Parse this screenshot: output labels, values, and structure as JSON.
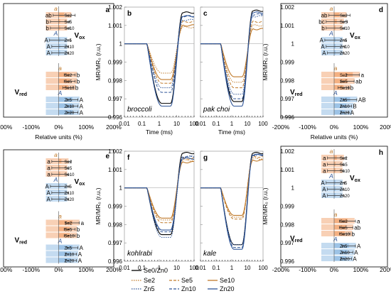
{
  "chart_data": [
    {
      "panel": "a",
      "type": "bar",
      "orientation": "horizontal",
      "blocks": [
        {
          "title": "V",
          "title_sub": "ox",
          "groups": [
            {
              "letter": "a",
              "letter_color": "#c07a2a",
              "rows": [
                {
                  "label": "Se2",
                  "value": 20,
                  "err": 40,
                  "sig": "ab"
                },
                {
                  "label": "Se5",
                  "value": 5,
                  "err": 35,
                  "sig": "b"
                },
                {
                  "label": "Se10",
                  "value": 5,
                  "err": 35,
                  "sig": "b"
                }
              ]
            },
            {
              "letter": "A",
              "letter_color": "#2f5597",
              "rows": [
                {
                  "label": "Zn5",
                  "value": 5,
                  "err": 38,
                  "sig": "A"
                },
                {
                  "label": "Zn10",
                  "value": 5,
                  "err": 30,
                  "sig": "A"
                },
                {
                  "label": "Zn20",
                  "value": 5,
                  "err": 30,
                  "sig": "A"
                }
              ]
            }
          ]
        },
        {
          "title": "V",
          "title_sub": "red",
          "groups": [
            {
              "letter": "a",
              "letter_color": "#c07a2a",
              "rows": [
                {
                  "label": "Se2",
                  "value": 40,
                  "err": 20,
                  "sig": "b"
                },
                {
                  "label": "Se5",
                  "value": 40,
                  "err": 20,
                  "sig": "b"
                },
                {
                  "label": "Se10",
                  "value": 35,
                  "err": 20,
                  "sig": "b"
                }
              ]
            },
            {
              "letter": "A",
              "letter_color": "#2f5597",
              "rows": [
                {
                  "label": "Zn5",
                  "value": 50,
                  "err": 20,
                  "sig": "A"
                },
                {
                  "label": "Zn10",
                  "value": 50,
                  "err": 20,
                  "sig": "A"
                },
                {
                  "label": "Zn20",
                  "value": 50,
                  "err": 20,
                  "sig": "A"
                }
              ]
            }
          ]
        }
      ],
      "xticks": [
        "-200%",
        "-100%",
        "0%",
        "100%",
        "200%"
      ],
      "xlim": [
        -200,
        200
      ],
      "xlabel": "Relative units (%)"
    },
    {
      "panel": "b",
      "type": "line",
      "plant": "broccoli",
      "x_log": true,
      "xlim": [
        0.01,
        100
      ],
      "ylim": [
        0.996,
        1.002
      ],
      "xticks": [
        "0.01",
        "0.1",
        "1",
        "10",
        "100"
      ],
      "yticks": [
        "0.996",
        "0.997",
        "0.998",
        "0.999",
        "1",
        "1.001",
        "1.002"
      ],
      "xlabel": "Time (ms)",
      "ylabel": "MR/MR₀ (r.u.)",
      "series": [
        {
          "name": "Se0/Zn0",
          "min": 0.99675,
          "end": 1.0017
        },
        {
          "name": "Se2",
          "min": 0.9984,
          "end": 1.0009
        },
        {
          "name": "Se5",
          "min": 0.99785,
          "end": 1.0012
        },
        {
          "name": "Se10",
          "min": 0.99805,
          "end": 1.001
        },
        {
          "name": "Zn5",
          "min": 0.9976,
          "end": 1.0013
        },
        {
          "name": "Zn10",
          "min": 0.99735,
          "end": 1.0015
        },
        {
          "name": "Zn20",
          "min": 0.9966,
          "end": 1.0015
        }
      ]
    },
    {
      "panel": "c",
      "type": "line",
      "plant": "pak choi",
      "x_log": true,
      "xlim": [
        0.01,
        100
      ],
      "ylim": [
        0.996,
        1.002
      ],
      "xticks": [
        "0.01",
        "0.1",
        "1",
        "10",
        "100"
      ],
      "yticks": [
        "0.996",
        "0.997",
        "0.998",
        "0.999",
        "1",
        "1.001",
        "1.002"
      ],
      "xlabel": "Time (ms)",
      "ylabel": "MR/MR₀ (r.u.)",
      "series": [
        {
          "name": "Se0/Zn0",
          "min": 0.99685,
          "end": 1.0018
        },
        {
          "name": "Se2",
          "min": 0.9979,
          "end": 1.001
        },
        {
          "name": "Se5",
          "min": 0.9976,
          "end": 1.0012
        },
        {
          "name": "Se10",
          "min": 0.9982,
          "end": 1.0008
        },
        {
          "name": "Zn5",
          "min": 0.99725,
          "end": 1.0015
        },
        {
          "name": "Zn10",
          "min": 0.997,
          "end": 1.0016
        },
        {
          "name": "Zn20",
          "min": 0.9966,
          "end": 1.0017
        }
      ]
    },
    {
      "panel": "d",
      "type": "bar",
      "orientation": "horizontal",
      "blocks": [
        {
          "title": "V",
          "title_sub": "ox",
          "groups": [
            {
              "letter": "a",
              "letter_color": "#c07a2a",
              "rows": [
                {
                  "label": "Se2",
                  "value": 20,
                  "err": 40,
                  "sig": "ab"
                },
                {
                  "label": "Se5",
                  "value": 10,
                  "err": 40,
                  "sig": "bc"
                },
                {
                  "label": "Se10",
                  "value": 5,
                  "err": 35,
                  "sig": "b"
                }
              ]
            },
            {
              "letter": "A",
              "letter_color": "#2f5597",
              "rows": [
                {
                  "label": "Zn5",
                  "value": 5,
                  "err": 40,
                  "sig": "A"
                },
                {
                  "label": "Zn10",
                  "value": 5,
                  "err": 35,
                  "sig": "A"
                },
                {
                  "label": "Zn20",
                  "value": 5,
                  "err": 30,
                  "sig": "A"
                }
              ]
            }
          ]
        },
        {
          "title": "V",
          "title_sub": "red",
          "groups": [
            {
              "letter": "a",
              "letter_color": "#c07a2a",
              "rows": [
                {
                  "label": "Se2",
                  "value": 70,
                  "err": 25,
                  "sig": "a"
                },
                {
                  "label": "Se5",
                  "value": 50,
                  "err": 25,
                  "sig": "ab"
                },
                {
                  "label": "Se10",
                  "value": 35,
                  "err": 20,
                  "sig": "b"
                }
              ]
            },
            {
              "letter": "A",
              "letter_color": "#2f5597",
              "rows": [
                {
                  "label": "Zn5",
                  "value": 60,
                  "err": 25,
                  "sig": "AB"
                },
                {
                  "label": "Zn10",
                  "value": 45,
                  "err": 20,
                  "sig": "B"
                },
                {
                  "label": "Zn20",
                  "value": 40,
                  "err": 15,
                  "sig": "A"
                }
              ]
            }
          ]
        }
      ],
      "xticks": [
        "-200%",
        "-100%",
        "0%",
        "100%",
        "200%"
      ],
      "xlim": [
        -200,
        200
      ],
      "xlabel": "Relative units (%)"
    },
    {
      "panel": "e",
      "type": "bar",
      "orientation": "horizontal",
      "blocks": [
        {
          "title": "V",
          "title_sub": "ox",
          "groups": [
            {
              "letter": "a",
              "letter_color": "#c07a2a",
              "rows": [
                {
                  "label": "Se2",
                  "value": 10,
                  "err": 35,
                  "sig": "a"
                },
                {
                  "label": "Se5",
                  "value": 5,
                  "err": 30,
                  "sig": "a"
                },
                {
                  "label": "Se10",
                  "value": 5,
                  "err": 30,
                  "sig": "a"
                }
              ]
            },
            {
              "letter": "A",
              "letter_color": "#2f5597",
              "rows": [
                {
                  "label": "Zn5",
                  "value": 5,
                  "err": 35,
                  "sig": "A"
                },
                {
                  "label": "Zn10",
                  "value": 5,
                  "err": 30,
                  "sig": "A"
                },
                {
                  "label": "Zn20",
                  "value": 5,
                  "err": 30,
                  "sig": "A"
                }
              ]
            }
          ]
        },
        {
          "title": "V",
          "title_sub": "red",
          "groups": [
            {
              "letter": "a",
              "letter_color": "#c07a2a",
              "rows": [
                {
                  "label": "Se2",
                  "value": 50,
                  "err": 25,
                  "sig": "a"
                },
                {
                  "label": "Se5",
                  "value": 40,
                  "err": 20,
                  "sig": "b"
                },
                {
                  "label": "Se10",
                  "value": 40,
                  "err": 20,
                  "sig": "b"
                }
              ]
            },
            {
              "letter": "A",
              "letter_color": "#2f5597",
              "rows": [
                {
                  "label": "Zn5",
                  "value": 50,
                  "err": 20,
                  "sig": "A"
                },
                {
                  "label": "Zn10",
                  "value": 45,
                  "err": 20,
                  "sig": "A"
                },
                {
                  "label": "Zn20",
                  "value": 45,
                  "err": 20,
                  "sig": "A"
                }
              ]
            }
          ]
        }
      ],
      "xticks": [
        "-200%",
        "-100%",
        "0%",
        "100%",
        "200%"
      ],
      "xlim": [
        -200,
        200
      ],
      "xlabel": ""
    },
    {
      "panel": "f",
      "type": "line",
      "plant": "kohlrabi",
      "x_log": true,
      "xlim": [
        0.01,
        100
      ],
      "ylim": [
        0.996,
        1.002
      ],
      "xticks": [
        "0.01",
        "0.1",
        "1",
        "10",
        "100"
      ],
      "yticks": [
        "0.996",
        "0.997",
        "0.998",
        "0.999",
        "1",
        "1.001",
        "1.002"
      ],
      "xlabel": "",
      "ylabel": "MR/MR₀ (r.u.)",
      "series": [
        {
          "name": "Se0/Zn0",
          "min": 0.99745,
          "end": 1.0019
        },
        {
          "name": "Se2",
          "min": 0.99825,
          "end": 1.0015
        },
        {
          "name": "Se5",
          "min": 0.9981,
          "end": 1.0016
        },
        {
          "name": "Se10",
          "min": 0.99835,
          "end": 1.0014
        },
        {
          "name": "Zn5",
          "min": 0.9973,
          "end": 1.0017
        },
        {
          "name": "Zn10",
          "min": 0.9976,
          "end": 1.0017
        },
        {
          "name": "Zn20",
          "min": 0.9977,
          "end": 1.0016
        }
      ]
    },
    {
      "panel": "g",
      "type": "line",
      "plant": "kale",
      "x_log": true,
      "xlim": [
        0.01,
        100
      ],
      "ylim": [
        0.996,
        1.002
      ],
      "xticks": [
        "0.01",
        "0.1",
        "1",
        "10",
        "100"
      ],
      "yticks": [
        "0.996",
        "0.997",
        "0.998",
        "0.999",
        "1",
        "1.001",
        "1.002"
      ],
      "xlabel": "",
      "ylabel": "MR/MR₀ (r.u.)",
      "series": [
        {
          "name": "Se0/Zn0",
          "min": 0.9969,
          "end": 1.0019
        },
        {
          "name": "Se2",
          "min": 0.9984,
          "end": 1.0016
        },
        {
          "name": "Se5",
          "min": 0.9983,
          "end": 1.0017
        },
        {
          "name": "Se10",
          "min": 0.9985,
          "end": 1.0015
        },
        {
          "name": "Zn5",
          "min": 0.9969,
          "end": 1.0018
        },
        {
          "name": "Zn10",
          "min": 0.99675,
          "end": 1.0018
        },
        {
          "name": "Zn20",
          "min": 0.99665,
          "end": 1.0018
        }
      ]
    },
    {
      "panel": "h",
      "type": "bar",
      "orientation": "horizontal",
      "blocks": [
        {
          "title": "V",
          "title_sub": "ox",
          "groups": [
            {
              "letter": "a",
              "letter_color": "#c07a2a",
              "rows": [
                {
                  "label": "Se2",
                  "value": 10,
                  "err": 35,
                  "sig": "a"
                },
                {
                  "label": "Se5",
                  "value": 5,
                  "err": 30,
                  "sig": "a"
                },
                {
                  "label": "Se10",
                  "value": 5,
                  "err": 30,
                  "sig": "a"
                }
              ]
            },
            {
              "letter": "A",
              "letter_color": "#2f5597",
              "rows": [
                {
                  "label": "Zn5",
                  "value": 5,
                  "err": 35,
                  "sig": "A"
                },
                {
                  "label": "Zn10",
                  "value": 5,
                  "err": 30,
                  "sig": "A"
                },
                {
                  "label": "Zn20",
                  "value": 5,
                  "err": 30,
                  "sig": "A"
                }
              ]
            }
          ]
        },
        {
          "title": "V",
          "title_sub": "red",
          "groups": [
            {
              "letter": "a",
              "letter_color": "#c07a2a",
              "rows": [
                {
                  "label": "Se2",
                  "value": 50,
                  "err": 30,
                  "sig": "a"
                },
                {
                  "label": "Se5",
                  "value": 45,
                  "err": 25,
                  "sig": "ab"
                },
                {
                  "label": "Se10",
                  "value": 40,
                  "err": 20,
                  "sig": "b"
                }
              ]
            },
            {
              "letter": "A",
              "letter_color": "#2f5597",
              "rows": [
                {
                  "label": "Zn5",
                  "value": 55,
                  "err": 25,
                  "sig": "A"
                },
                {
                  "label": "Zn10",
                  "value": 50,
                  "err": 20,
                  "sig": "A"
                },
                {
                  "label": "Zn20",
                  "value": 45,
                  "err": 20,
                  "sig": "A"
                }
              ]
            }
          ]
        }
      ],
      "xticks": [
        "-200%",
        "-100%",
        "0%",
        "100%",
        "200%"
      ],
      "xlim": [
        -200,
        200
      ],
      "xlabel": ""
    }
  ],
  "legend": [
    {
      "name": "Se0/Zn0",
      "color": "#000000",
      "dash": "solid"
    },
    {
      "name": "Se2",
      "color": "#c07a2a",
      "dash": "dot"
    },
    {
      "name": "Se5",
      "color": "#c07a2a",
      "dash": "dash"
    },
    {
      "name": "Se10",
      "color": "#c07a2a",
      "dash": "solid"
    },
    {
      "name": "Zn5",
      "color": "#2f5597",
      "dash": "dot"
    },
    {
      "name": "Zn10",
      "color": "#2f5597",
      "dash": "dash"
    },
    {
      "name": "Zn20",
      "color": "#2f5597",
      "dash": "solid"
    }
  ],
  "colors": {
    "se_fill": "#f4b183",
    "zn_fill": "#9dc3e6",
    "se_line": "#c07a2a",
    "zn_line": "#2f5597",
    "control": "#000000"
  }
}
